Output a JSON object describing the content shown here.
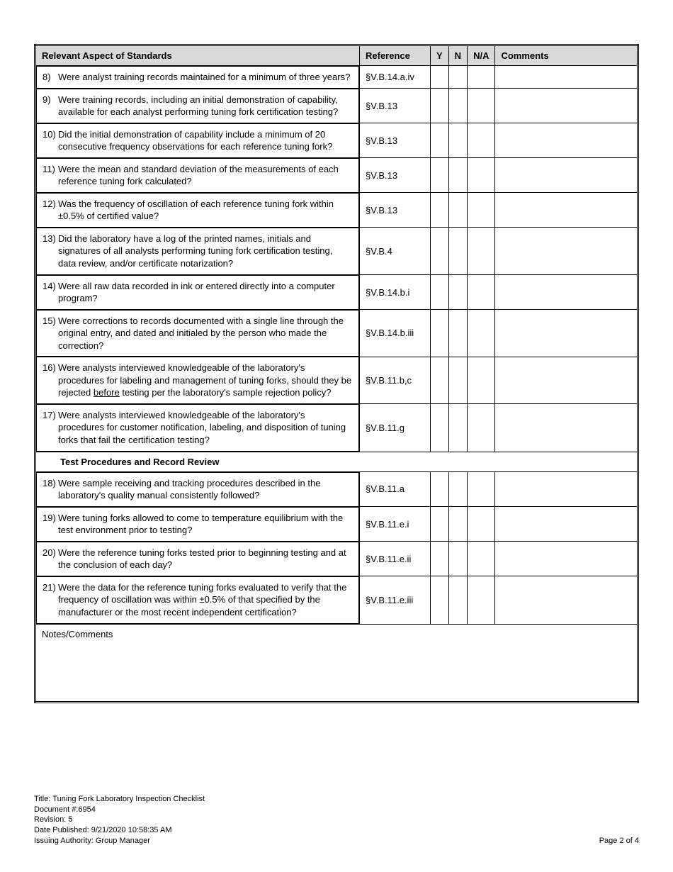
{
  "table": {
    "headers": {
      "aspect": "Relevant Aspect of Standards",
      "reference": "Reference",
      "y": "Y",
      "n": "N",
      "na": "N/A",
      "comments": "Comments"
    },
    "rows": [
      {
        "num": "8)",
        "text": "Were analyst training records maintained for a minimum of three years?",
        "ref": "§V.B.14.a.iv"
      },
      {
        "num": "9)",
        "text": "Were training records, including an initial demonstration of capability, available for each analyst performing tuning fork certification testing?",
        "ref": "§V.B.13"
      },
      {
        "num": "10)",
        "text": "Did the initial demonstration of capability include a minimum of 20 consecutive frequency observations for each reference tuning fork?",
        "ref": "§V.B.13"
      },
      {
        "num": "11)",
        "text": "Were the mean and standard deviation of the measurements of each reference tuning fork calculated?",
        "ref": "§V.B.13"
      },
      {
        "num": "12)",
        "text": "Was the frequency of oscillation of each reference tuning fork within ±0.5% of certified value?",
        "ref": "§V.B.13"
      },
      {
        "num": "13)",
        "text": "Did the laboratory have a log of the printed names, initials and signatures of all analysts performing tuning fork certification testing, data review, and/or certificate notarization?",
        "ref": "§V.B.4"
      },
      {
        "num": "14)",
        "text": "Were all raw data recorded in ink or entered directly into a computer program?",
        "ref": "§V.B.14.b.i"
      },
      {
        "num": "15)",
        "text": "Were corrections to records documented with a single line through the original entry, and dated and initialed by the person who made the correction?",
        "ref": "§V.B.14.b.iii"
      },
      {
        "num": "16)",
        "html": "Were analysts interviewed knowledgeable of the laboratory's procedures for labeling and management of tuning forks, should they be rejected <u>before</u> testing per the laboratory's sample rejection policy?",
        "ref": "§V.B.11.b,c"
      },
      {
        "num": "17)",
        "text": "Were analysts interviewed knowledgeable of the laboratory's procedures for customer notification, labeling, and disposition of tuning forks that fail the certification testing?",
        "ref": "§V.B.11.g"
      },
      {
        "section": "Test Procedures and Record Review"
      },
      {
        "num": "18)",
        "text": "Were sample receiving and tracking procedures described in the laboratory's quality manual consistently followed?",
        "ref": "§V.B.11.a"
      },
      {
        "num": "19)",
        "text": "Were tuning forks allowed to come to temperature equilibrium with the test environment prior to testing?",
        "ref": "§V.B.11.e.i"
      },
      {
        "num": "20)",
        "text": "Were the reference tuning forks tested prior to beginning testing and at the conclusion of each day?",
        "ref": "§V.B.11.e.ii"
      },
      {
        "num": "21)",
        "text": "Were the data for the reference tuning forks evaluated to verify that the frequency of oscillation was within ±0.5% of that specified by the manufacturer or the most recent independent certification?",
        "ref": "§V.B.11.e.iii"
      }
    ],
    "notes_label": "Notes/Comments"
  },
  "footer": {
    "title_label": "Title:",
    "title_value": "Tuning Fork Laboratory Inspection Checklist",
    "doc_label": "Document #:",
    "doc_value": "6954",
    "rev_label": "Revision:",
    "rev_value": "5",
    "date_label": "Date Published:",
    "date_value": "9/21/2020 10:58:35 AM",
    "auth_label": "Issuing Authority:",
    "auth_value": "Group Manager",
    "page": "Page 2 of 4"
  }
}
